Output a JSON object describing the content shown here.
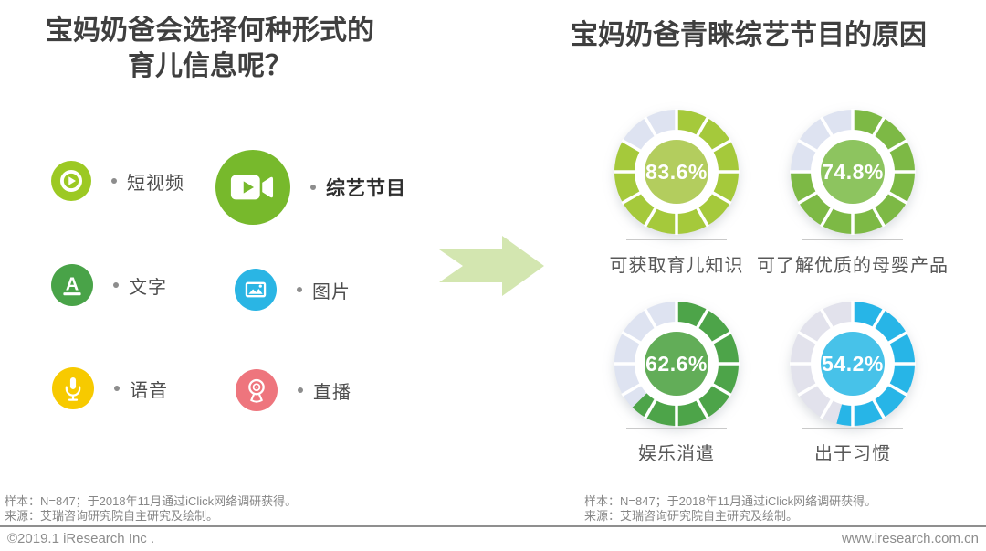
{
  "left_panel": {
    "title_line1": "宝妈奶爸会选择何种形式的",
    "title_line2": "育儿信息呢？",
    "arrow_color": "#d3e6b0",
    "items": [
      {
        "id": "short-video",
        "label": "短视频",
        "icon": "play-circle-icon",
        "color": "#9cc923"
      },
      {
        "id": "variety-show",
        "label": "综艺节目",
        "icon": "video-camera-icon",
        "color": "#77b92c"
      },
      {
        "id": "text",
        "label": "文字",
        "icon": "letter-a-icon",
        "color": "#49a348"
      },
      {
        "id": "picture",
        "label": "图片",
        "icon": "image-icon",
        "color": "#2ab5e4"
      },
      {
        "id": "voice",
        "label": "语音",
        "icon": "microphone-icon",
        "color": "#f7ca00"
      },
      {
        "id": "live",
        "label": "直播",
        "icon": "webcam-icon",
        "color": "#ee757d"
      }
    ]
  },
  "right_panel": {
    "title": "宝妈奶爸青睐综艺节目的原因"
  },
  "chart_data": {
    "type": "pie",
    "title": "宝妈奶爸青睐综艺节目的原因",
    "legend_position": "none",
    "donuts": [
      {
        "label": "可获取育儿知识",
        "value": 83.6,
        "display": "83.6%",
        "ring_color": "#a5c93b",
        "center_color": "#b3cd5e",
        "rest_color": "#dee3f1",
        "segments": 12
      },
      {
        "label": "可了解优质的母婴产品",
        "value": 74.8,
        "display": "74.8%",
        "ring_color": "#7db945",
        "center_color": "#8dc45f",
        "rest_color": "#dee3f1",
        "segments": 12
      },
      {
        "label": "娱乐消遣",
        "value": 62.6,
        "display": "62.6%",
        "ring_color": "#4da449",
        "center_color": "#62ad58",
        "rest_color": "#dee3f1",
        "segments": 12
      },
      {
        "label": "出于习惯",
        "value": 54.2,
        "display": "54.2%",
        "ring_color": "#27b5e7",
        "center_color": "#47c2e9",
        "rest_color": "#e2e2ec",
        "segments": 12
      }
    ]
  },
  "footnote": {
    "sample": "样本：N=847；于2018年11月通过iClick网络调研获得。",
    "source": "来源：艾瑞咨询研究院自主研究及绘制。"
  },
  "bottom_bar": {
    "copyright": "©2019.1 iResearch Inc .",
    "website": "www.iresearch.com.cn"
  }
}
